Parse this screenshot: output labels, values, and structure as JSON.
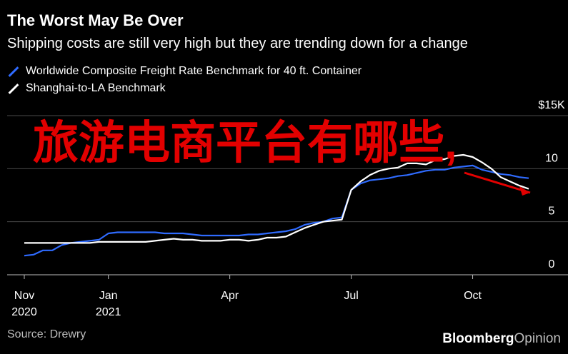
{
  "header": {
    "title": "The Worst May Be Over",
    "subtitle": "Shipping costs are still very high but they are trending down for a change"
  },
  "legend": [
    {
      "label": "Worldwide Composite Freight Rate Benchmark for 40 ft. Container",
      "color": "#2f6bff"
    },
    {
      "label": "Shanghai-to-LA Benchmark",
      "color": "#ffffff"
    }
  ],
  "footer": {
    "source": "Source: Drewry",
    "brand_main": "Bloomberg",
    "brand_sub": "Opinion"
  },
  "overlay": {
    "text": "旅游电商平台有哪些,",
    "color": "#e20000"
  },
  "chart_data": {
    "type": "line",
    "title": "The Worst May Be Over",
    "subtitle": "Shipping costs are still very high but they are trending down for a change",
    "x_ticks": [
      {
        "line1": "Nov",
        "line2": "2020",
        "week": 0
      },
      {
        "line1": "Jan",
        "line2": "2021",
        "week": 9
      },
      {
        "line1": "Apr",
        "line2": "",
        "week": 22
      },
      {
        "line1": "Jul",
        "line2": "",
        "week": 35
      },
      {
        "line1": "Oct",
        "line2": "",
        "week": 48
      }
    ],
    "y_ticks": [
      "$15K",
      "10",
      "5",
      "0"
    ],
    "y_tick_values": [
      15,
      10,
      5,
      0
    ],
    "ylim": [
      0,
      15
    ],
    "series": [
      {
        "name": "Worldwide Composite Freight Rate Benchmark for 40 ft. Container",
        "color": "#2f6bff",
        "points": [
          [
            0,
            1.8
          ],
          [
            1,
            1.9
          ],
          [
            2,
            2.3
          ],
          [
            3,
            2.3
          ],
          [
            4,
            2.8
          ],
          [
            5,
            3.0
          ],
          [
            6,
            3.1
          ],
          [
            7,
            3.2
          ],
          [
            8,
            3.3
          ],
          [
            9,
            3.9
          ],
          [
            10,
            4.0
          ],
          [
            11,
            4.0
          ],
          [
            12,
            4.0
          ],
          [
            13,
            4.0
          ],
          [
            14,
            4.0
          ],
          [
            15,
            3.9
          ],
          [
            16,
            3.9
          ],
          [
            17,
            3.9
          ],
          [
            18,
            3.8
          ],
          [
            19,
            3.7
          ],
          [
            20,
            3.7
          ],
          [
            21,
            3.7
          ],
          [
            22,
            3.7
          ],
          [
            23,
            3.7
          ],
          [
            24,
            3.8
          ],
          [
            25,
            3.8
          ],
          [
            26,
            3.9
          ],
          [
            27,
            4.0
          ],
          [
            28,
            4.1
          ],
          [
            29,
            4.3
          ],
          [
            30,
            4.7
          ],
          [
            31,
            4.9
          ],
          [
            32,
            5.0
          ],
          [
            33,
            5.3
          ],
          [
            34,
            5.4
          ],
          [
            35,
            8.0
          ],
          [
            36,
            8.6
          ],
          [
            37,
            8.9
          ],
          [
            38,
            9.0
          ],
          [
            39,
            9.1
          ],
          [
            40,
            9.3
          ],
          [
            41,
            9.4
          ],
          [
            42,
            9.6
          ],
          [
            43,
            9.8
          ],
          [
            44,
            9.9
          ],
          [
            45,
            9.9
          ],
          [
            46,
            10.1
          ],
          [
            47,
            10.2
          ],
          [
            48,
            10.3
          ],
          [
            49,
            9.9
          ],
          [
            50,
            9.7
          ],
          [
            51,
            9.5
          ],
          [
            52,
            9.4
          ],
          [
            53,
            9.2
          ],
          [
            54,
            9.1
          ]
        ]
      },
      {
        "name": "Shanghai-to-LA Benchmark",
        "color": "#ffffff",
        "points": [
          [
            0,
            3.0
          ],
          [
            1,
            3.0
          ],
          [
            2,
            3.0
          ],
          [
            3,
            3.0
          ],
          [
            4,
            3.0
          ],
          [
            5,
            3.0
          ],
          [
            6,
            3.0
          ],
          [
            7,
            3.0
          ],
          [
            8,
            3.1
          ],
          [
            9,
            3.1
          ],
          [
            10,
            3.1
          ],
          [
            11,
            3.1
          ],
          [
            12,
            3.1
          ],
          [
            13,
            3.1
          ],
          [
            14,
            3.2
          ],
          [
            15,
            3.3
          ],
          [
            16,
            3.4
          ],
          [
            17,
            3.3
          ],
          [
            18,
            3.3
          ],
          [
            19,
            3.2
          ],
          [
            20,
            3.2
          ],
          [
            21,
            3.2
          ],
          [
            22,
            3.3
          ],
          [
            23,
            3.3
          ],
          [
            24,
            3.2
          ],
          [
            25,
            3.3
          ],
          [
            26,
            3.5
          ],
          [
            27,
            3.5
          ],
          [
            28,
            3.6
          ],
          [
            29,
            4.0
          ],
          [
            30,
            4.4
          ],
          [
            31,
            4.7
          ],
          [
            32,
            5.0
          ],
          [
            33,
            5.1
          ],
          [
            34,
            5.2
          ],
          [
            35,
            8.0
          ],
          [
            36,
            8.8
          ],
          [
            37,
            9.4
          ],
          [
            38,
            9.8
          ],
          [
            39,
            10.0
          ],
          [
            40,
            10.1
          ],
          [
            41,
            10.5
          ],
          [
            42,
            10.5
          ],
          [
            43,
            10.4
          ],
          [
            44,
            10.8
          ],
          [
            45,
            10.9
          ],
          [
            46,
            11.2
          ],
          [
            47,
            11.3
          ],
          [
            48,
            11.1
          ],
          [
            49,
            10.6
          ],
          [
            50,
            10.0
          ],
          [
            51,
            9.2
          ],
          [
            52,
            8.8
          ],
          [
            53,
            8.4
          ],
          [
            54,
            8.1
          ]
        ]
      }
    ]
  }
}
